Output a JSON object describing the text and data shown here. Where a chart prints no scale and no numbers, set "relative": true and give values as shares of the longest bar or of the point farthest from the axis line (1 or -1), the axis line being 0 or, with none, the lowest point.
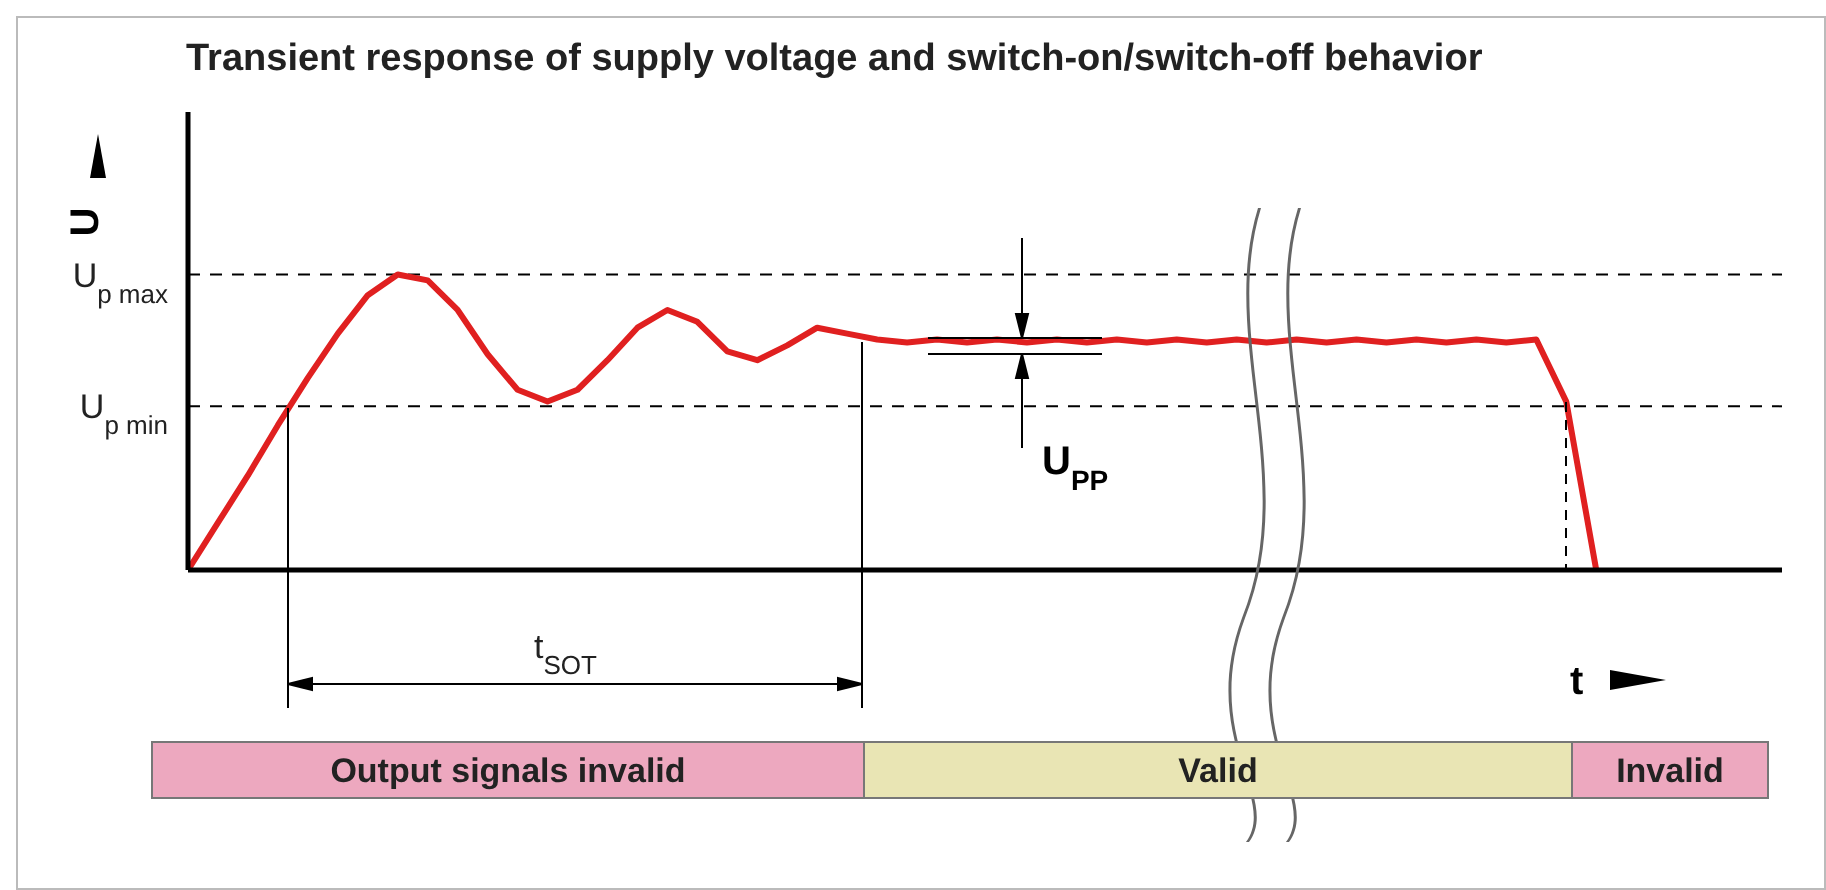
{
  "chart_data": {
    "type": "line",
    "title": "Transient response of supply voltage and switch-on/switch-off behavior",
    "xlabel": "t",
    "ylabel": "U",
    "relative": true,
    "legend": false,
    "grid": false,
    "marker": "none",
    "line_style": "solid",
    "categories": [
      null,
      null,
      null,
      null,
      null,
      null,
      null,
      null,
      null,
      null,
      null,
      null,
      null,
      null,
      null,
      null,
      null,
      null,
      null,
      null,
      null,
      null,
      null,
      null,
      null,
      null,
      null,
      null,
      null,
      null,
      null,
      null,
      null,
      null,
      null,
      null,
      null,
      null,
      null,
      null,
      null,
      null,
      null,
      null,
      null,
      null,
      null,
      null
    ],
    "series": [
      {
        "color": "#e02020",
        "values": [
          0,
          0.16,
          0.32,
          0.49,
          0.65,
          0.8,
          0.93,
          1,
          0.98,
          0.88,
          0.73,
          0.61,
          0.57,
          0.61,
          0.71,
          0.82,
          0.88,
          0.84,
          0.74,
          0.71,
          0.76,
          0.82,
          0.8,
          0.78,
          0.77,
          0.78,
          0.77,
          0.78,
          0.77,
          0.78,
          0.77,
          0.78,
          0.77,
          0.78,
          0.77,
          0.78,
          0.77,
          0.78,
          0.77,
          0.78,
          0.77,
          0.78,
          0.77,
          0.78,
          0.77,
          0.78,
          0.57,
          0
        ]
      }
    ],
    "ref_lines": [
      {
        "axis": "y",
        "value": 1,
        "label": "U$_{p max}$",
        "line_style": "dashed",
        "color": "#000000"
      },
      {
        "axis": "y",
        "value": 0.554,
        "label": "U$_{p min}$",
        "line_style": "dashed",
        "color": "#000000"
      }
    ],
    "annotations": [
      "t$_{SOT}$",
      "U$_{PP}$",
      "Output signals invalid",
      "Valid",
      "Invalid"
    ]
  }
}
